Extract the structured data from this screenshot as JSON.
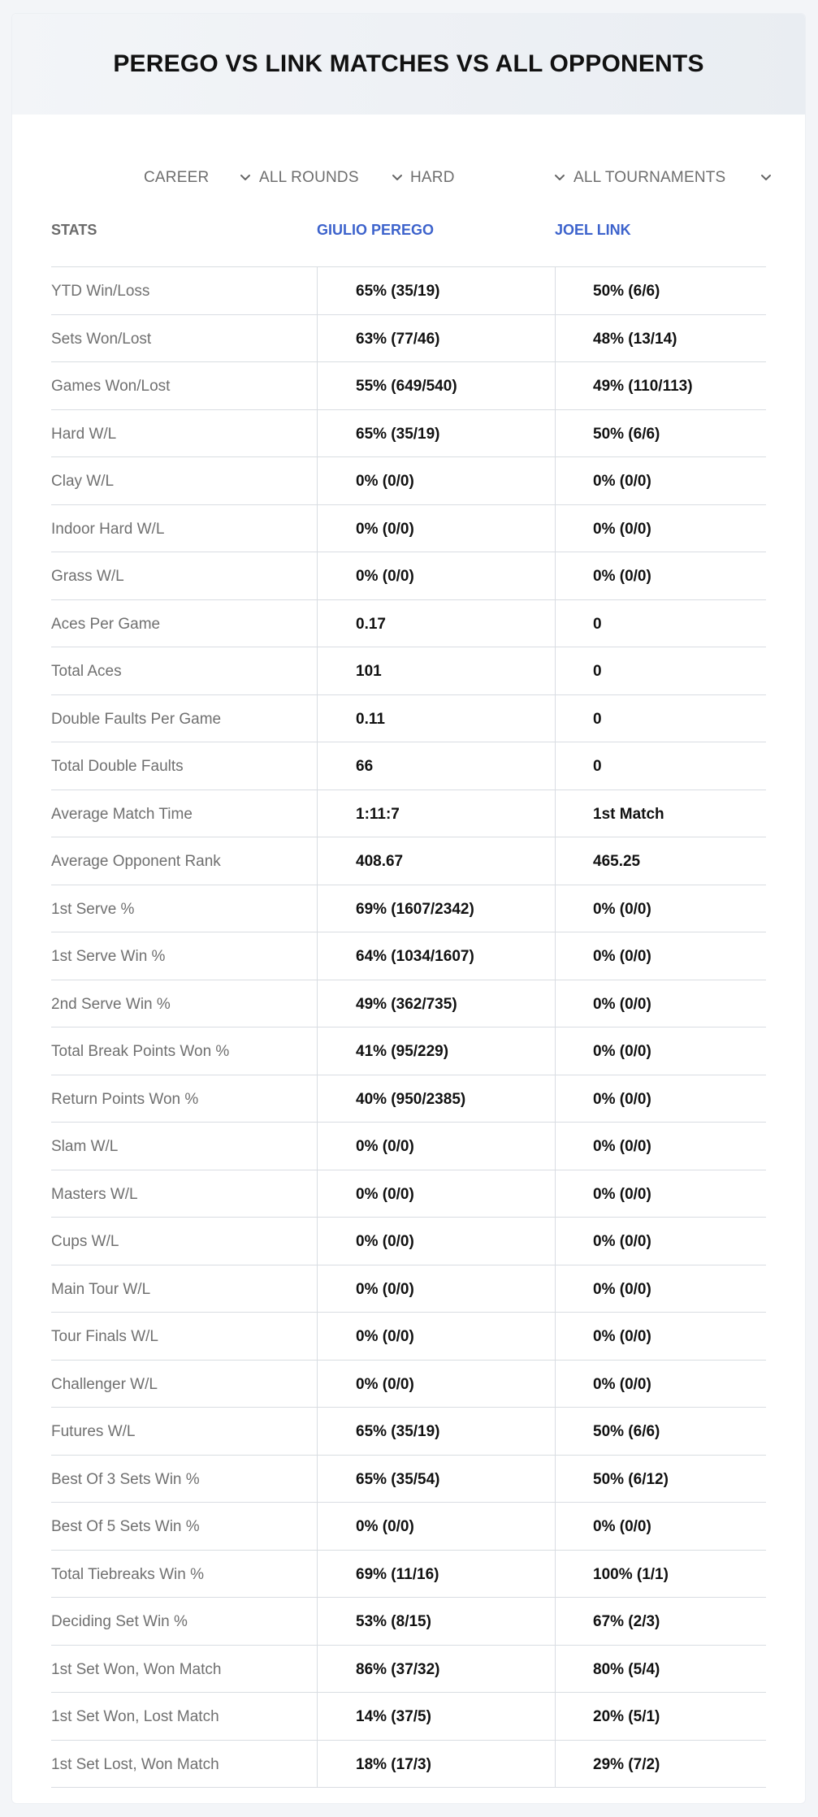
{
  "title": "PEREGO VS LINK MATCHES VS ALL OPPONENTS",
  "filters": {
    "period": "CAREER",
    "rounds": "ALL ROUNDS",
    "surface": "HARD",
    "tournaments": "ALL TOURNAMENTS"
  },
  "header": {
    "stats": "STATS",
    "player1": "GIULIO PEREGO",
    "player2": "JOEL LINK"
  },
  "rows": [
    {
      "label": "YTD Win/Loss",
      "p1": "65% (35/19)",
      "p2": "50% (6/6)"
    },
    {
      "label": "Sets Won/Lost",
      "p1": "63% (77/46)",
      "p2": "48% (13/14)"
    },
    {
      "label": "Games Won/Lost",
      "p1": "55% (649/540)",
      "p2": "49% (110/113)"
    },
    {
      "label": "Hard W/L",
      "p1": "65% (35/19)",
      "p2": "50% (6/6)"
    },
    {
      "label": "Clay W/L",
      "p1": "0% (0/0)",
      "p2": "0% (0/0)"
    },
    {
      "label": "Indoor Hard W/L",
      "p1": "0% (0/0)",
      "p2": "0% (0/0)"
    },
    {
      "label": "Grass W/L",
      "p1": "0% (0/0)",
      "p2": "0% (0/0)"
    },
    {
      "label": "Aces Per Game",
      "p1": "0.17",
      "p2": "0"
    },
    {
      "label": "Total Aces",
      "p1": "101",
      "p2": "0"
    },
    {
      "label": "Double Faults Per Game",
      "p1": "0.11",
      "p2": "0"
    },
    {
      "label": "Total Double Faults",
      "p1": "66",
      "p2": "0"
    },
    {
      "label": "Average Match Time",
      "p1": "1:11:7",
      "p2": "1st Match"
    },
    {
      "label": "Average Opponent Rank",
      "p1": "408.67",
      "p2": "465.25"
    },
    {
      "label": "1st Serve %",
      "p1": "69% (1607/2342)",
      "p2": "0% (0/0)"
    },
    {
      "label": "1st Serve Win %",
      "p1": "64% (1034/1607)",
      "p2": "0% (0/0)"
    },
    {
      "label": "2nd Serve Win %",
      "p1": "49% (362/735)",
      "p2": "0% (0/0)"
    },
    {
      "label": "Total Break Points Won %",
      "p1": "41% (95/229)",
      "p2": "0% (0/0)"
    },
    {
      "label": "Return Points Won %",
      "p1": "40% (950/2385)",
      "p2": "0% (0/0)"
    },
    {
      "label": "Slam W/L",
      "p1": "0% (0/0)",
      "p2": "0% (0/0)"
    },
    {
      "label": "Masters W/L",
      "p1": "0% (0/0)",
      "p2": "0% (0/0)"
    },
    {
      "label": "Cups W/L",
      "p1": "0% (0/0)",
      "p2": "0% (0/0)"
    },
    {
      "label": "Main Tour W/L",
      "p1": "0% (0/0)",
      "p2": "0% (0/0)"
    },
    {
      "label": "Tour Finals W/L",
      "p1": "0% (0/0)",
      "p2": "0% (0/0)"
    },
    {
      "label": "Challenger W/L",
      "p1": "0% (0/0)",
      "p2": "0% (0/0)"
    },
    {
      "label": "Futures W/L",
      "p1": "65% (35/19)",
      "p2": "50% (6/6)"
    },
    {
      "label": "Best Of 3 Sets Win %",
      "p1": "65% (35/54)",
      "p2": "50% (6/12)"
    },
    {
      "label": "Best Of 5 Sets Win %",
      "p1": "0% (0/0)",
      "p2": "0% (0/0)"
    },
    {
      "label": "Total Tiebreaks Win %",
      "p1": "69% (11/16)",
      "p2": "100% (1/1)"
    },
    {
      "label": "Deciding Set Win %",
      "p1": "53% (8/15)",
      "p2": "67% (2/3)"
    },
    {
      "label": "1st Set Won, Won Match",
      "p1": "86% (37/32)",
      "p2": "80% (5/4)"
    },
    {
      "label": "1st Set Won, Lost Match",
      "p1": "14% (37/5)",
      "p2": "20% (5/1)"
    },
    {
      "label": "1st Set Lost, Won Match",
      "p1": "18% (17/3)",
      "p2": "29% (7/2)"
    }
  ]
}
